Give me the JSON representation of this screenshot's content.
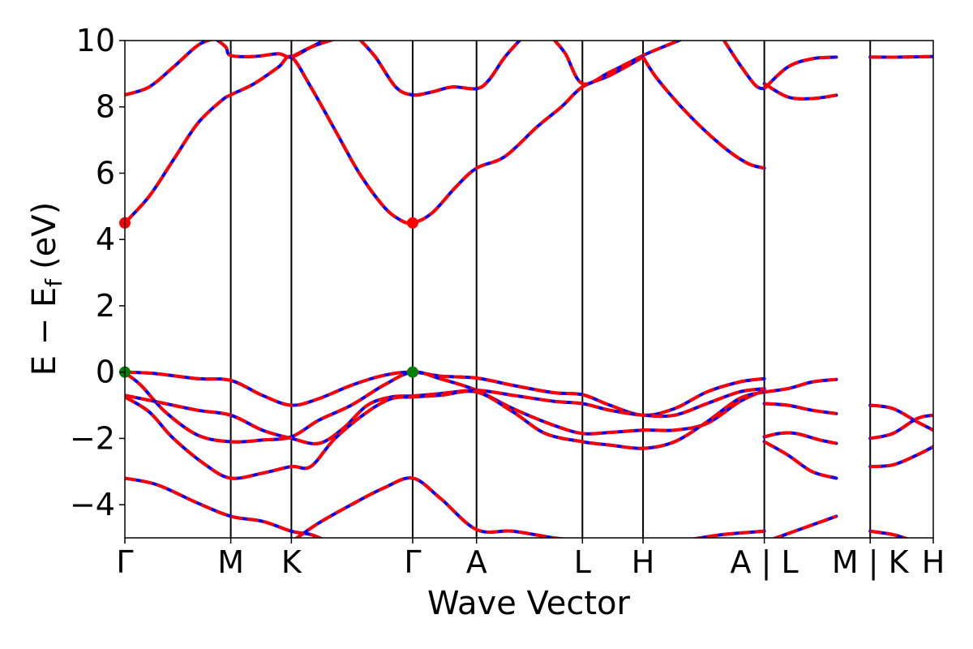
{
  "chart_data": {
    "type": "line",
    "title": "",
    "xlabel": "Wave Vector",
    "ylabel": "E − E",
    "ylabel_subscript": "f",
    "ylabel_unit": "(eV)",
    "ylim": [
      -5,
      10
    ],
    "yticks": [
      -4,
      -2,
      0,
      2,
      4,
      6,
      8,
      10
    ],
    "ytick_labels": [
      "−4",
      "−2",
      "0",
      "2",
      "4",
      "6",
      "8",
      "10"
    ],
    "xlim": [
      0,
      1
    ],
    "kpoints": [
      {
        "x": 0.0,
        "label": "Γ"
      },
      {
        "x": 0.131,
        "label": "M"
      },
      {
        "x": 0.206,
        "label": "K"
      },
      {
        "x": 0.356,
        "label": "Γ"
      },
      {
        "x": 0.435,
        "label": "A"
      },
      {
        "x": 0.566,
        "label": "L"
      },
      {
        "x": 0.641,
        "label": "H"
      },
      {
        "x": 0.791,
        "label": "A | L"
      },
      {
        "x": 0.922,
        "label": "M | K"
      },
      {
        "x": 1.0,
        "label": "H"
      }
    ],
    "line_styles": {
      "solid_color": "#0000ff",
      "dashed_color": "#ff0000"
    },
    "markers": [
      {
        "x": 0.0,
        "y": 4.5,
        "color": "#ff0000"
      },
      {
        "x": 0.356,
        "y": 4.5,
        "color": "#ff0000"
      },
      {
        "x": 0.0,
        "y": 0.0,
        "color": "#008000"
      },
      {
        "x": 0.356,
        "y": 0.0,
        "color": "#008000"
      }
    ],
    "series": [
      {
        "points": [
          [
            0.0,
            8.36
          ],
          [
            0.03,
            8.6
          ],
          [
            0.06,
            9.2
          ],
          [
            0.09,
            9.85
          ],
          [
            0.11,
            10.05
          ],
          [
            0.115,
            10.0
          ],
          [
            0.125,
            9.8
          ],
          [
            0.131,
            9.55
          ],
          [
            0.16,
            9.52
          ],
          [
            0.19,
            9.6
          ],
          [
            0.206,
            9.5
          ],
          [
            0.23,
            9.8
          ],
          [
            0.25,
            10.05
          ]
        ]
      },
      {
        "points": [
          [
            0.0,
            4.5
          ],
          [
            0.03,
            5.3
          ],
          [
            0.06,
            6.4
          ],
          [
            0.09,
            7.5
          ],
          [
            0.12,
            8.2
          ],
          [
            0.131,
            8.36
          ],
          [
            0.16,
            8.7
          ],
          [
            0.19,
            9.2
          ],
          [
            0.206,
            9.5
          ],
          [
            0.23,
            8.6
          ],
          [
            0.26,
            7.3
          ],
          [
            0.29,
            6.0
          ],
          [
            0.32,
            5.0
          ],
          [
            0.34,
            4.6
          ],
          [
            0.356,
            4.5
          ],
          [
            0.38,
            4.8
          ],
          [
            0.41,
            5.6
          ],
          [
            0.435,
            6.15
          ],
          [
            0.47,
            6.5
          ],
          [
            0.51,
            7.4
          ],
          [
            0.54,
            8.0
          ],
          [
            0.566,
            8.6
          ],
          [
            0.6,
            8.95
          ],
          [
            0.641,
            9.5
          ]
        ]
      },
      {
        "points": [
          [
            0.206,
            9.5
          ],
          [
            0.23,
            9.8
          ],
          [
            0.26,
            10.05
          ]
        ]
      },
      {
        "points": [
          [
            0.29,
            10.05
          ],
          [
            0.31,
            9.5
          ],
          [
            0.335,
            8.6
          ],
          [
            0.356,
            8.36
          ],
          [
            0.38,
            8.45
          ],
          [
            0.405,
            8.6
          ],
          [
            0.435,
            8.55
          ],
          [
            0.45,
            8.8
          ],
          [
            0.47,
            9.5
          ],
          [
            0.49,
            10.05
          ]
        ]
      },
      {
        "points": [
          [
            0.53,
            10.05
          ],
          [
            0.545,
            9.6
          ],
          [
            0.566,
            8.7
          ],
          [
            0.6,
            9.05
          ],
          [
            0.641,
            9.55
          ],
          [
            0.66,
            9.75
          ],
          [
            0.69,
            10.05
          ]
        ]
      },
      {
        "points": [
          [
            0.641,
            9.5
          ],
          [
            0.66,
            8.8
          ],
          [
            0.7,
            7.7
          ],
          [
            0.74,
            6.8
          ],
          [
            0.77,
            6.3
          ],
          [
            0.791,
            6.15
          ]
        ]
      },
      {
        "points": [
          [
            0.74,
            10.05
          ],
          [
            0.76,
            9.3
          ],
          [
            0.78,
            8.65
          ],
          [
            0.791,
            8.55
          ]
        ]
      },
      {
        "points": [
          [
            0.791,
            8.7
          ],
          [
            0.82,
            8.3
          ],
          [
            0.85,
            8.25
          ],
          [
            0.88,
            8.35
          ]
        ]
      },
      {
        "points": [
          [
            0.791,
            8.55
          ],
          [
            0.82,
            9.2
          ],
          [
            0.85,
            9.45
          ],
          [
            0.88,
            9.5
          ]
        ]
      },
      {
        "points": [
          [
            0.922,
            9.5
          ],
          [
            0.96,
            9.5
          ],
          [
            1.0,
            9.52
          ]
        ]
      },
      {
        "points": [
          [
            0.0,
            0.0
          ],
          [
            0.04,
            -0.05
          ],
          [
            0.09,
            -0.2
          ],
          [
            0.131,
            -0.25
          ],
          [
            0.17,
            -0.7
          ],
          [
            0.206,
            -1.0
          ],
          [
            0.24,
            -0.8
          ],
          [
            0.28,
            -0.4
          ],
          [
            0.32,
            -0.1
          ],
          [
            0.356,
            0.0
          ],
          [
            0.39,
            -0.12
          ],
          [
            0.435,
            -0.18
          ],
          [
            0.48,
            -0.4
          ],
          [
            0.53,
            -0.62
          ],
          [
            0.566,
            -0.68
          ],
          [
            0.6,
            -1.0
          ],
          [
            0.641,
            -1.3
          ],
          [
            0.68,
            -1.1
          ],
          [
            0.72,
            -0.6
          ],
          [
            0.76,
            -0.3
          ],
          [
            0.791,
            -0.2
          ]
        ]
      },
      {
        "points": [
          [
            0.0,
            -0.02
          ],
          [
            0.02,
            -0.4
          ],
          [
            0.05,
            -1.2
          ],
          [
            0.09,
            -1.9
          ],
          [
            0.131,
            -2.1
          ],
          [
            0.17,
            -2.05
          ],
          [
            0.206,
            -1.95
          ],
          [
            0.24,
            -1.45
          ],
          [
            0.28,
            -1.0
          ],
          [
            0.32,
            -0.4
          ],
          [
            0.356,
            0.0
          ],
          [
            0.39,
            -0.2
          ],
          [
            0.435,
            -0.55
          ],
          [
            0.48,
            -1.1
          ],
          [
            0.53,
            -1.6
          ],
          [
            0.566,
            -1.85
          ],
          [
            0.6,
            -1.82
          ],
          [
            0.641,
            -1.75
          ],
          [
            0.68,
            -1.75
          ],
          [
            0.72,
            -1.55
          ],
          [
            0.76,
            -0.9
          ],
          [
            0.791,
            -0.55
          ]
        ]
      },
      {
        "points": [
          [
            0.0,
            -0.7
          ],
          [
            0.04,
            -0.9
          ],
          [
            0.09,
            -1.15
          ],
          [
            0.131,
            -1.3
          ],
          [
            0.17,
            -1.75
          ],
          [
            0.206,
            -2.0
          ],
          [
            0.24,
            -2.15
          ],
          [
            0.27,
            -1.7
          ],
          [
            0.3,
            -1.0
          ],
          [
            0.33,
            -0.75
          ],
          [
            0.356,
            -0.72
          ],
          [
            0.39,
            -0.65
          ],
          [
            0.435,
            -0.55
          ],
          [
            0.48,
            -0.7
          ],
          [
            0.53,
            -0.88
          ],
          [
            0.566,
            -0.95
          ],
          [
            0.6,
            -1.15
          ],
          [
            0.641,
            -1.3
          ],
          [
            0.68,
            -1.3
          ],
          [
            0.72,
            -0.95
          ],
          [
            0.76,
            -0.6
          ],
          [
            0.791,
            -0.5
          ]
        ]
      },
      {
        "points": [
          [
            0.0,
            -0.75
          ],
          [
            0.03,
            -1.2
          ],
          [
            0.06,
            -2.0
          ],
          [
            0.1,
            -2.8
          ],
          [
            0.131,
            -3.2
          ],
          [
            0.17,
            -3.05
          ],
          [
            0.206,
            -2.85
          ],
          [
            0.23,
            -2.85
          ],
          [
            0.26,
            -2.0
          ],
          [
            0.3,
            -1.2
          ],
          [
            0.33,
            -0.8
          ],
          [
            0.356,
            -0.75
          ],
          [
            0.39,
            -0.7
          ],
          [
            0.435,
            -0.6
          ],
          [
            0.48,
            -1.2
          ],
          [
            0.52,
            -1.85
          ],
          [
            0.566,
            -2.1
          ],
          [
            0.6,
            -2.2
          ],
          [
            0.641,
            -2.3
          ],
          [
            0.68,
            -2.1
          ],
          [
            0.72,
            -1.5
          ],
          [
            0.76,
            -0.8
          ],
          [
            0.791,
            -0.6
          ]
        ]
      },
      {
        "points": [
          [
            0.0,
            -3.2
          ],
          [
            0.04,
            -3.4
          ],
          [
            0.09,
            -3.95
          ],
          [
            0.131,
            -4.35
          ],
          [
            0.17,
            -4.5
          ],
          [
            0.206,
            -4.8
          ],
          [
            0.23,
            -4.9
          ],
          [
            0.245,
            -5.05
          ]
        ]
      },
      {
        "points": [
          [
            0.21,
            -5.05
          ],
          [
            0.24,
            -4.55
          ],
          [
            0.28,
            -4.0
          ],
          [
            0.32,
            -3.5
          ],
          [
            0.356,
            -3.2
          ],
          [
            0.39,
            -3.8
          ],
          [
            0.435,
            -4.75
          ],
          [
            0.48,
            -4.8
          ],
          [
            0.53,
            -5.0
          ],
          [
            0.55,
            -5.05
          ]
        ]
      },
      {
        "points": [
          [
            0.7,
            -5.05
          ],
          [
            0.74,
            -4.9
          ],
          [
            0.791,
            -4.8
          ]
        ]
      },
      {
        "points": [
          [
            0.791,
            -0.6
          ],
          [
            0.82,
            -0.5
          ],
          [
            0.85,
            -0.3
          ],
          [
            0.88,
            -0.22
          ]
        ]
      },
      {
        "points": [
          [
            0.791,
            -0.95
          ],
          [
            0.82,
            -1.0
          ],
          [
            0.85,
            -1.15
          ],
          [
            0.88,
            -1.25
          ]
        ]
      },
      {
        "points": [
          [
            0.791,
            -1.95
          ],
          [
            0.81,
            -1.85
          ],
          [
            0.83,
            -1.85
          ],
          [
            0.86,
            -2.05
          ],
          [
            0.88,
            -2.15
          ]
        ]
      },
      {
        "points": [
          [
            0.791,
            -2.1
          ],
          [
            0.82,
            -2.5
          ],
          [
            0.85,
            -3.0
          ],
          [
            0.88,
            -3.2
          ]
        ]
      },
      {
        "points": [
          [
            0.8,
            -5.05
          ],
          [
            0.84,
            -4.7
          ],
          [
            0.88,
            -4.35
          ]
        ]
      },
      {
        "points": [
          [
            0.922,
            -1.0
          ],
          [
            0.95,
            -1.1
          ],
          [
            0.98,
            -1.5
          ],
          [
            1.0,
            -1.75
          ]
        ]
      },
      {
        "points": [
          [
            0.922,
            -2.0
          ],
          [
            0.95,
            -1.85
          ],
          [
            0.98,
            -1.4
          ],
          [
            1.0,
            -1.3
          ]
        ]
      },
      {
        "points": [
          [
            0.922,
            -2.85
          ],
          [
            0.95,
            -2.8
          ],
          [
            0.98,
            -2.5
          ],
          [
            1.0,
            -2.25
          ]
        ]
      },
      {
        "points": [
          [
            0.922,
            -4.8
          ],
          [
            0.95,
            -4.9
          ],
          [
            0.97,
            -5.05
          ]
        ]
      }
    ]
  }
}
